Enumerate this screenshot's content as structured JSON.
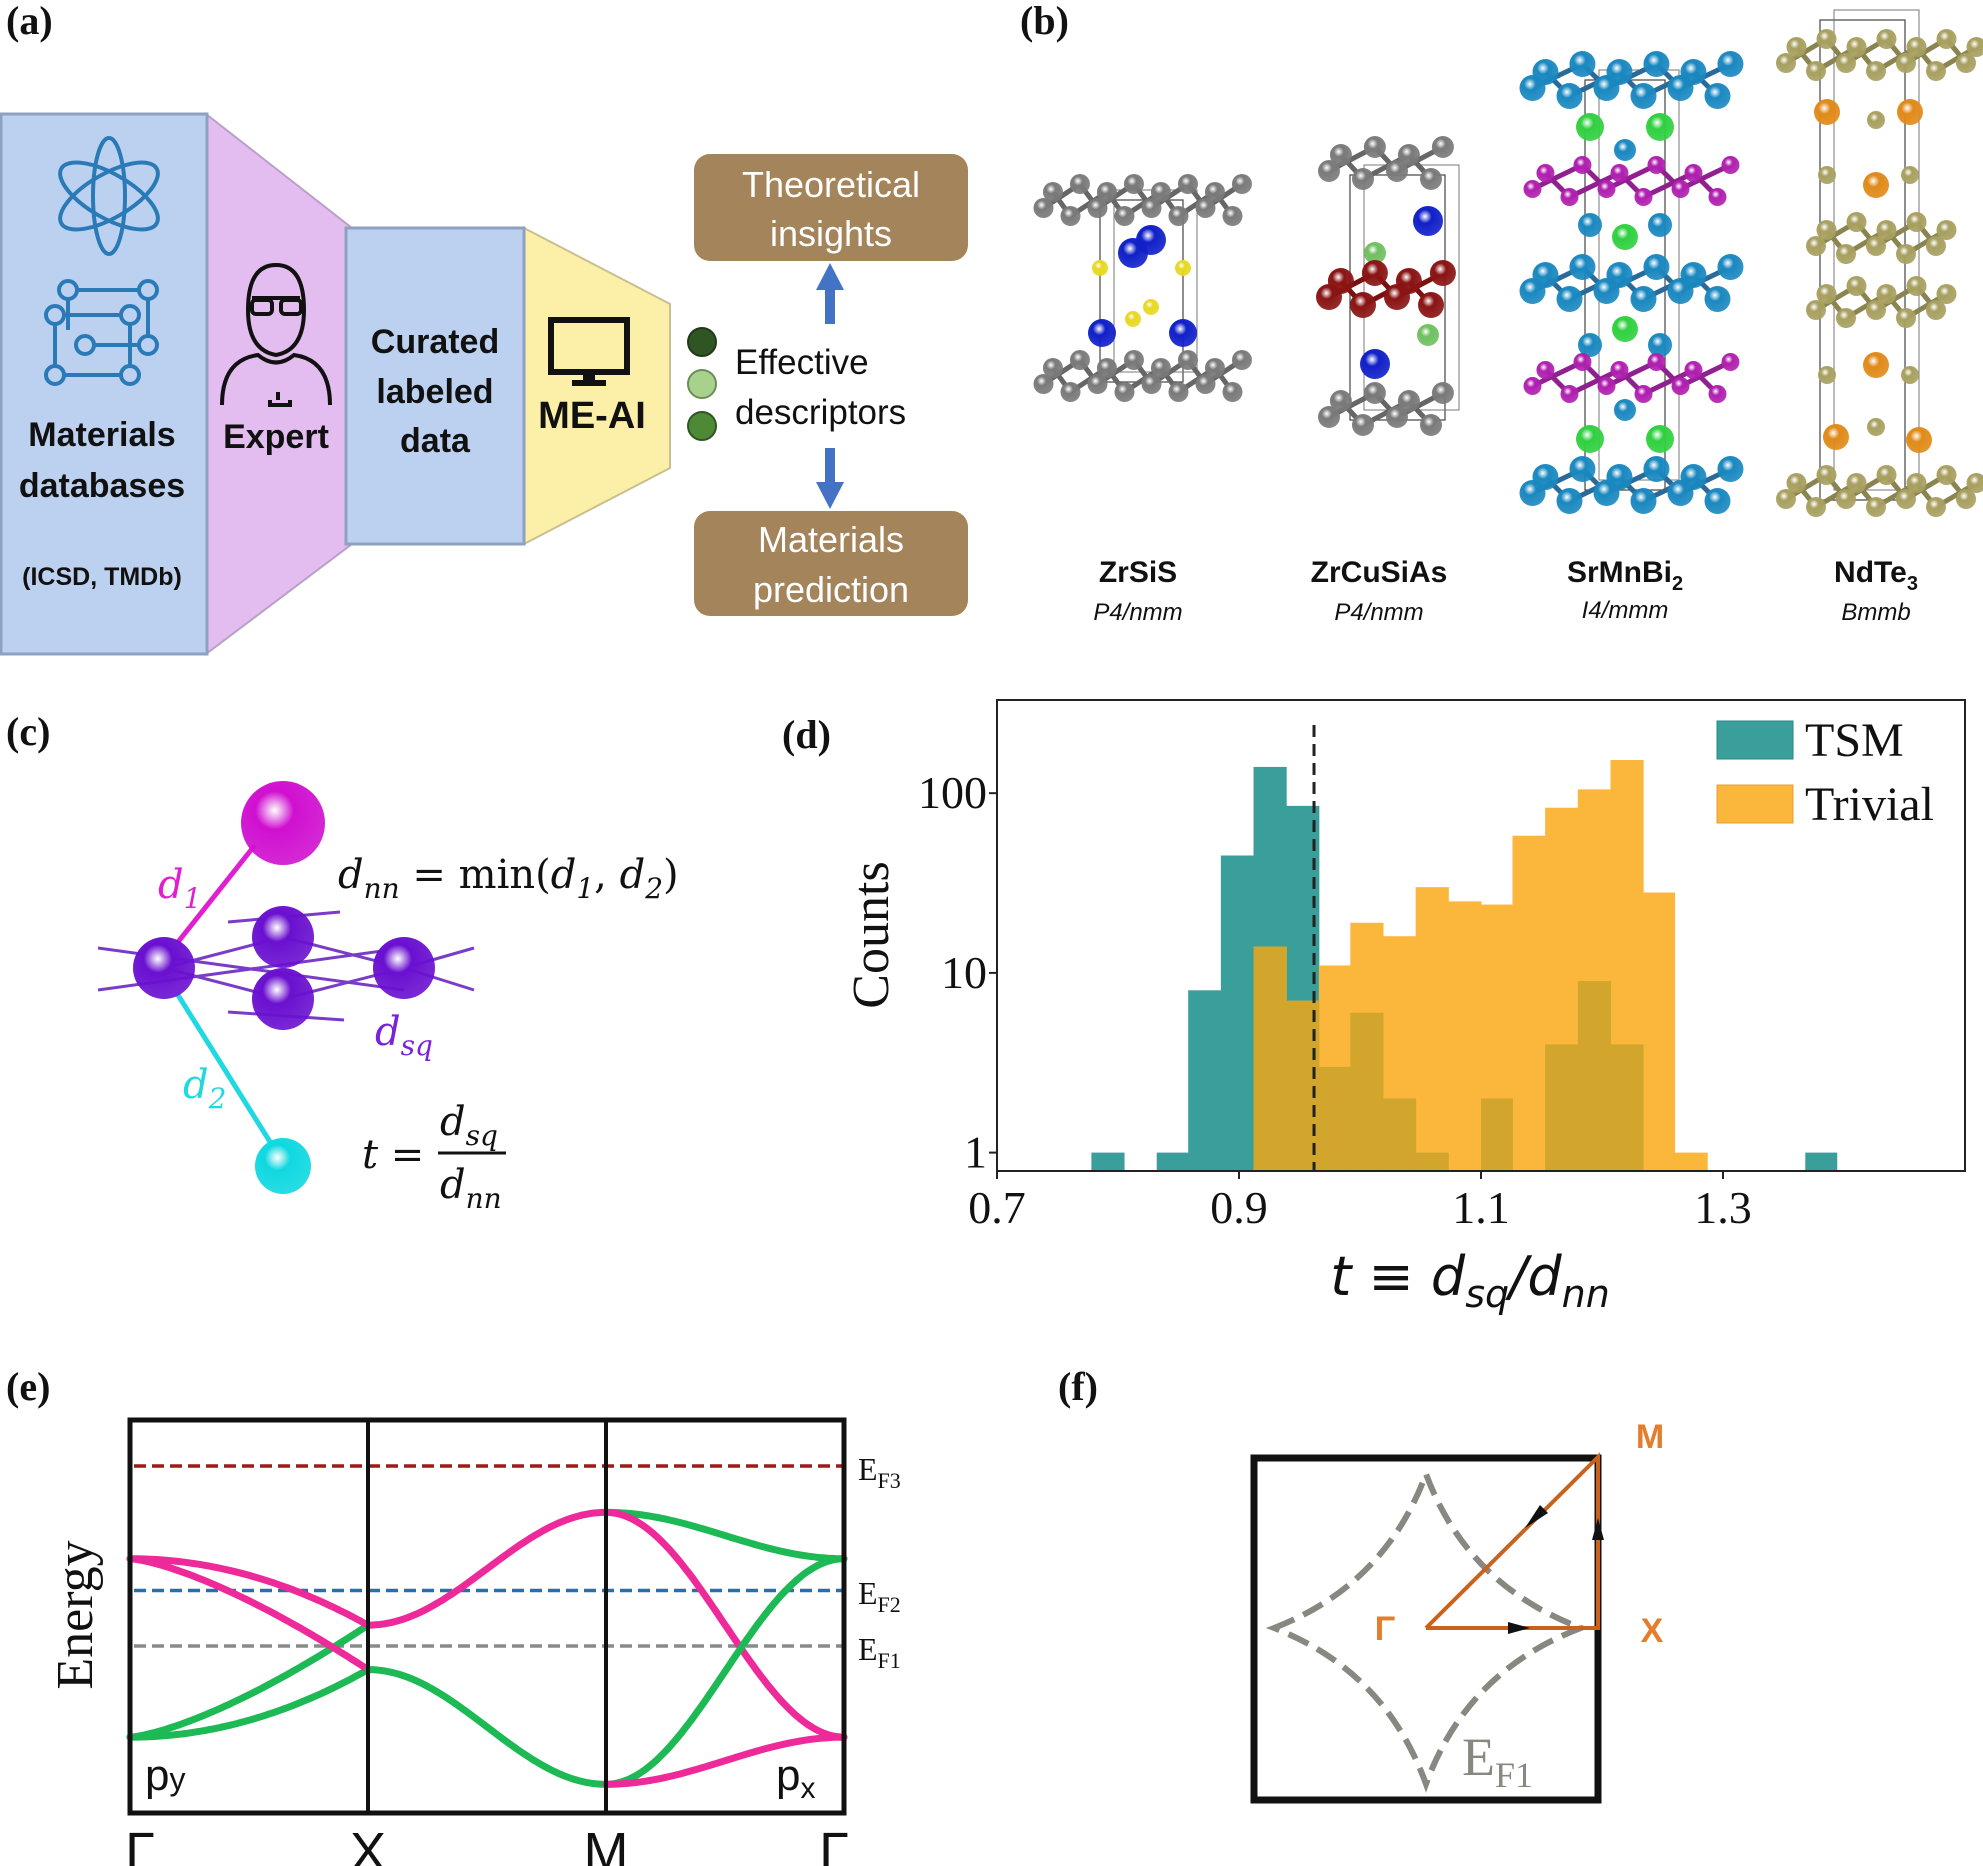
{
  "panel_labels": {
    "a": "(a)",
    "b": "(b)",
    "c": "(c)",
    "d": "(d)",
    "e": "(e)",
    "f": "(f)"
  },
  "panel_a": {
    "materials_line1": "Materials",
    "materials_line2": "databases",
    "sources": "(ICSD, TMDb)",
    "expert": "Expert",
    "curated": [
      "Curated",
      "labeled",
      "data"
    ],
    "meai": "ME-AI",
    "theoretical": [
      "Theoretical",
      "insights"
    ],
    "prediction": [
      "Materials",
      "prediction"
    ],
    "descriptors": [
      "Effective",
      "descriptors"
    ],
    "icons": [
      "atom-icon",
      "crystal-lattice-icon",
      "expert-person-icon",
      "monitor-icon"
    ],
    "colors": {
      "databases": "#bcd0f0",
      "expert": "#e3bdf0",
      "curated": "#bcd0f0",
      "meai": "#fcefa8",
      "output_box": "#a4845a",
      "arrow": "#4472c4",
      "descriptor_dots": [
        "#2f5524",
        "#a9d18e",
        "#4e8a35"
      ]
    }
  },
  "panel_b": {
    "structures": [
      {
        "formula": "ZrSiS",
        "subscript": "",
        "space_group": "P4/nmm"
      },
      {
        "formula": "ZrCuSiAs",
        "subscript": "",
        "space_group": "P4/nmm"
      },
      {
        "formula": "SrMnBi",
        "subscript": "2",
        "space_group": "I4/mmm"
      },
      {
        "formula": "NdTe",
        "subscript": "3",
        "space_group": "Bmmb"
      }
    ]
  },
  "panel_c": {
    "d1": {
      "base": "d",
      "sub": "1"
    },
    "d2": {
      "base": "d",
      "sub": "2"
    },
    "dsq": {
      "base": "d",
      "sub": "sq"
    },
    "dnn_eq": {
      "lhs": "d",
      "lhs_sub": "nn",
      "mid": " = min(",
      "a": "d",
      "a_sub": "1",
      "sep": ", ",
      "b": "d",
      "b_sub": "2",
      "close": ")"
    },
    "t_eq": {
      "lhs": "t =",
      "num": "d",
      "num_sub": "sq",
      "den": "d",
      "den_sub": "nn"
    },
    "colors": {
      "d1": "#e020d0",
      "d2": "#20d8e0",
      "square_net": "#7a22d8"
    }
  },
  "chart_data": {
    "type": "bar",
    "subtype": "overlaid histogram",
    "xlabel": {
      "base": "t ≡ d",
      "sub1": "sq",
      "mid": "/d",
      "sub2": "nn"
    },
    "ylabel": "Counts",
    "y_scale": "log",
    "xlim": [
      0.7,
      1.5
    ],
    "ylim": [
      0.79,
      330
    ],
    "x_ticks": [
      "0.7",
      "0.9",
      "1.1",
      "1.3"
    ],
    "y_ticks": [
      "1",
      "10",
      "100"
    ],
    "grid": false,
    "legend_position": "top-right",
    "threshold_line": 0.962,
    "bin_edges": [
      0.778,
      0.805,
      0.832,
      0.858,
      0.885,
      0.912,
      0.939,
      0.966,
      0.992,
      1.019,
      1.046,
      1.073,
      1.1,
      1.126,
      1.153,
      1.18,
      1.207,
      1.234,
      1.26,
      1.287,
      1.314,
      1.341,
      1.368,
      1.394
    ],
    "series": [
      {
        "name": "TSM",
        "color": "#3a9e9a",
        "values": [
          1,
          0,
          1,
          8,
          45,
          140,
          85,
          3,
          6,
          2,
          1,
          0,
          2,
          0,
          4,
          9,
          4,
          0,
          0,
          0,
          0,
          0,
          1
        ]
      },
      {
        "name": "Trivial",
        "color": "#fbb73c",
        "values": [
          0,
          0,
          0,
          0,
          0,
          14,
          7,
          11,
          19,
          16,
          30,
          25,
          24,
          58,
          83,
          105,
          153,
          28,
          1,
          0,
          0,
          0,
          0
        ]
      }
    ],
    "overlap_color": "#d2a52c"
  },
  "panel_e": {
    "ylabel": "Energy",
    "k_labels": [
      "Γ",
      "X",
      "M",
      "Γ"
    ],
    "fermi_levels": [
      {
        "base": "E",
        "sub": "F3",
        "color": "#a01818"
      },
      {
        "base": "E",
        "sub": "F2",
        "color": "#2e6ea8"
      },
      {
        "base": "E",
        "sub": "F1",
        "color": "#8a8a8a"
      }
    ],
    "orbital_labels": {
      "py": {
        "base": "p",
        "sub": "y",
        "color": "#1db954"
      },
      "px": {
        "base": "p",
        "sub": "x",
        "color": "#ee2a9a"
      }
    }
  },
  "panel_f": {
    "points": {
      "gamma": "Γ",
      "x": "X",
      "m": "M"
    },
    "fermi_label": {
      "base": "E",
      "sub": "F1"
    },
    "colors": {
      "path": "#c8621c",
      "labels": "#e47d2e",
      "fermi_surface": "#888880"
    }
  }
}
